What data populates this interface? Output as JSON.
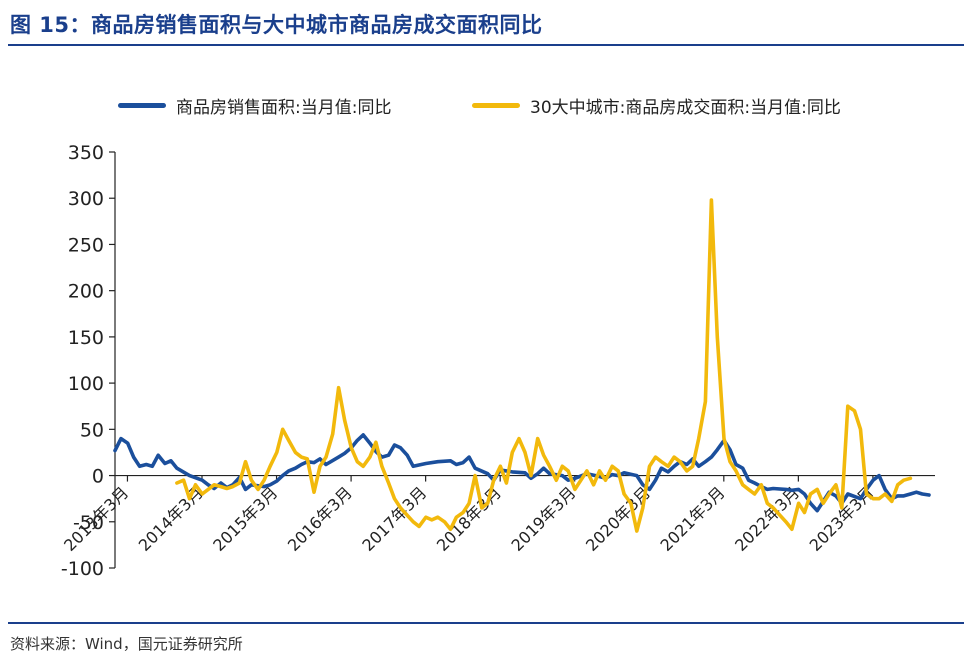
{
  "header": {
    "title": "图 15：商品房销售面积与大中城市商品房成交面积同比"
  },
  "source": {
    "text": "资料来源：Wind，国元证券研究所"
  },
  "colors": {
    "accent": "#1a3f8c"
  },
  "chart_data": {
    "type": "line",
    "title": "",
    "xlabel": "",
    "ylabel": "",
    "ylim": [
      -100,
      350
    ],
    "yticks": [
      -100,
      -50,
      0,
      50,
      100,
      150,
      200,
      250,
      300,
      350
    ],
    "xlim": [
      2013.0,
      2024.0
    ],
    "xticks": [
      {
        "label": "2013年3月",
        "value": 2013.167
      },
      {
        "label": "2014年3月",
        "value": 2014.167
      },
      {
        "label": "2015年3月",
        "value": 2015.167
      },
      {
        "label": "2016年3月",
        "value": 2016.167
      },
      {
        "label": "2017年3月",
        "value": 2017.167
      },
      {
        "label": "2018年3月",
        "value": 2018.167
      },
      {
        "label": "2019年3月",
        "value": 2019.167
      },
      {
        "label": "2020年3月",
        "value": 2020.167
      },
      {
        "label": "2021年3月",
        "value": 2021.167
      },
      {
        "label": "2022年3月",
        "value": 2022.167
      },
      {
        "label": "2023年3月",
        "value": 2023.167
      }
    ],
    "grid": false,
    "legend_position": "top",
    "series": [
      {
        "name": "商品房销售面积:当月值:同比",
        "color": "#1b4f9c",
        "points": [
          [
            2013.0,
            27
          ],
          [
            2013.08,
            40
          ],
          [
            2013.17,
            35
          ],
          [
            2013.25,
            20
          ],
          [
            2013.33,
            10
          ],
          [
            2013.42,
            12
          ],
          [
            2013.5,
            10
          ],
          [
            2013.58,
            22
          ],
          [
            2013.67,
            13
          ],
          [
            2013.75,
            16
          ],
          [
            2013.83,
            8
          ],
          [
            2014.0,
            0
          ],
          [
            2014.17,
            -5
          ],
          [
            2014.25,
            -10
          ],
          [
            2014.33,
            -14
          ],
          [
            2014.42,
            -8
          ],
          [
            2014.5,
            -13
          ],
          [
            2014.58,
            -10
          ],
          [
            2014.67,
            -2
          ],
          [
            2014.75,
            -15
          ],
          [
            2014.83,
            -10
          ],
          [
            2015.0,
            -12
          ],
          [
            2015.08,
            -10
          ],
          [
            2015.17,
            -6
          ],
          [
            2015.25,
            0
          ],
          [
            2015.33,
            5
          ],
          [
            2015.42,
            8
          ],
          [
            2015.5,
            12
          ],
          [
            2015.58,
            15
          ],
          [
            2015.67,
            14
          ],
          [
            2015.75,
            18
          ],
          [
            2015.83,
            12
          ],
          [
            2016.0,
            20
          ],
          [
            2016.08,
            24
          ],
          [
            2016.17,
            30
          ],
          [
            2016.25,
            38
          ],
          [
            2016.33,
            44
          ],
          [
            2016.42,
            35
          ],
          [
            2016.5,
            26
          ],
          [
            2016.58,
            20
          ],
          [
            2016.67,
            22
          ],
          [
            2016.75,
            33
          ],
          [
            2016.83,
            30
          ],
          [
            2016.92,
            22
          ],
          [
            2017.0,
            10
          ],
          [
            2017.17,
            13
          ],
          [
            2017.33,
            15
          ],
          [
            2017.5,
            16
          ],
          [
            2017.58,
            12
          ],
          [
            2017.67,
            14
          ],
          [
            2017.75,
            20
          ],
          [
            2017.83,
            8
          ],
          [
            2018.0,
            2
          ],
          [
            2018.08,
            -5
          ],
          [
            2018.17,
            6
          ],
          [
            2018.33,
            4
          ],
          [
            2018.5,
            3
          ],
          [
            2018.58,
            -3
          ],
          [
            2018.67,
            2
          ],
          [
            2018.75,
            8
          ],
          [
            2018.83,
            2
          ],
          [
            2019.0,
            0
          ],
          [
            2019.08,
            -5
          ],
          [
            2019.17,
            -3
          ],
          [
            2019.33,
            2
          ],
          [
            2019.5,
            -1
          ],
          [
            2019.58,
            -3
          ],
          [
            2019.67,
            1
          ],
          [
            2019.75,
            0
          ],
          [
            2019.83,
            3
          ],
          [
            2020.0,
            0
          ],
          [
            2020.08,
            -10
          ],
          [
            2020.17,
            -15
          ],
          [
            2020.25,
            -5
          ],
          [
            2020.33,
            8
          ],
          [
            2020.42,
            4
          ],
          [
            2020.5,
            10
          ],
          [
            2020.58,
            15
          ],
          [
            2020.67,
            12
          ],
          [
            2020.75,
            18
          ],
          [
            2020.83,
            10
          ],
          [
            2020.92,
            15
          ],
          [
            2021.0,
            20
          ],
          [
            2021.08,
            28
          ],
          [
            2021.17,
            38
          ],
          [
            2021.25,
            28
          ],
          [
            2021.33,
            12
          ],
          [
            2021.42,
            8
          ],
          [
            2021.5,
            -5
          ],
          [
            2021.58,
            -8
          ],
          [
            2021.67,
            -12
          ],
          [
            2021.75,
            -15
          ],
          [
            2021.83,
            -14
          ],
          [
            2022.0,
            -15
          ],
          [
            2022.08,
            -16
          ],
          [
            2022.17,
            -15
          ],
          [
            2022.25,
            -20
          ],
          [
            2022.33,
            -30
          ],
          [
            2022.42,
            -38
          ],
          [
            2022.5,
            -28
          ],
          [
            2022.58,
            -18
          ],
          [
            2022.67,
            -22
          ],
          [
            2022.75,
            -30
          ],
          [
            2022.83,
            -20
          ],
          [
            2023.0,
            -25
          ],
          [
            2023.08,
            -15
          ],
          [
            2023.17,
            -5
          ],
          [
            2023.25,
            0
          ],
          [
            2023.33,
            -15
          ],
          [
            2023.42,
            -25
          ],
          [
            2023.5,
            -22
          ],
          [
            2023.58,
            -22
          ],
          [
            2023.67,
            -20
          ],
          [
            2023.75,
            -18
          ],
          [
            2023.83,
            -20
          ],
          [
            2023.92,
            -21
          ]
        ]
      },
      {
        "name": "30大中城市:商品房成交面积:当月值:同比",
        "color": "#f2b90c",
        "points": [
          [
            2013.83,
            -8
          ],
          [
            2013.92,
            -5
          ],
          [
            2014.0,
            -25
          ],
          [
            2014.08,
            -10
          ],
          [
            2014.17,
            -20
          ],
          [
            2014.25,
            -15
          ],
          [
            2014.33,
            -10
          ],
          [
            2014.42,
            -12
          ],
          [
            2014.5,
            -14
          ],
          [
            2014.58,
            -12
          ],
          [
            2014.67,
            -8
          ],
          [
            2014.75,
            15
          ],
          [
            2014.83,
            -5
          ],
          [
            2014.92,
            -15
          ],
          [
            2015.0,
            -5
          ],
          [
            2015.08,
            10
          ],
          [
            2015.17,
            25
          ],
          [
            2015.25,
            50
          ],
          [
            2015.33,
            38
          ],
          [
            2015.42,
            25
          ],
          [
            2015.5,
            20
          ],
          [
            2015.58,
            18
          ],
          [
            2015.67,
            -18
          ],
          [
            2015.75,
            10
          ],
          [
            2015.83,
            20
          ],
          [
            2015.92,
            45
          ],
          [
            2016.0,
            95
          ],
          [
            2016.08,
            60
          ],
          [
            2016.17,
            30
          ],
          [
            2016.25,
            15
          ],
          [
            2016.33,
            10
          ],
          [
            2016.42,
            20
          ],
          [
            2016.5,
            36
          ],
          [
            2016.58,
            10
          ],
          [
            2016.67,
            -8
          ],
          [
            2016.75,
            -25
          ],
          [
            2016.83,
            -35
          ],
          [
            2017.0,
            -50
          ],
          [
            2017.08,
            -55
          ],
          [
            2017.17,
            -45
          ],
          [
            2017.25,
            -48
          ],
          [
            2017.33,
            -45
          ],
          [
            2017.42,
            -50
          ],
          [
            2017.5,
            -58
          ],
          [
            2017.58,
            -45
          ],
          [
            2017.67,
            -40
          ],
          [
            2017.75,
            -30
          ],
          [
            2017.83,
            0
          ],
          [
            2017.92,
            -35
          ],
          [
            2018.0,
            -30
          ],
          [
            2018.08,
            -5
          ],
          [
            2018.17,
            10
          ],
          [
            2018.25,
            -8
          ],
          [
            2018.33,
            25
          ],
          [
            2018.42,
            40
          ],
          [
            2018.5,
            25
          ],
          [
            2018.58,
            0
          ],
          [
            2018.67,
            40
          ],
          [
            2018.75,
            22
          ],
          [
            2018.83,
            10
          ],
          [
            2018.92,
            -5
          ],
          [
            2019.0,
            10
          ],
          [
            2019.08,
            5
          ],
          [
            2019.17,
            -15
          ],
          [
            2019.25,
            -5
          ],
          [
            2019.33,
            5
          ],
          [
            2019.42,
            -10
          ],
          [
            2019.5,
            5
          ],
          [
            2019.58,
            -5
          ],
          [
            2019.67,
            10
          ],
          [
            2019.75,
            5
          ],
          [
            2019.83,
            -20
          ],
          [
            2019.92,
            -30
          ],
          [
            2020.0,
            -60
          ],
          [
            2020.08,
            -35
          ],
          [
            2020.17,
            10
          ],
          [
            2020.25,
            20
          ],
          [
            2020.33,
            15
          ],
          [
            2020.42,
            10
          ],
          [
            2020.5,
            20
          ],
          [
            2020.58,
            15
          ],
          [
            2020.67,
            5
          ],
          [
            2020.75,
            10
          ],
          [
            2020.83,
            40
          ],
          [
            2020.92,
            80
          ],
          [
            2021.0,
            298
          ],
          [
            2021.08,
            150
          ],
          [
            2021.17,
            40
          ],
          [
            2021.25,
            15
          ],
          [
            2021.33,
            5
          ],
          [
            2021.42,
            -10
          ],
          [
            2021.5,
            -15
          ],
          [
            2021.58,
            -20
          ],
          [
            2021.67,
            -10
          ],
          [
            2021.75,
            -30
          ],
          [
            2021.83,
            -35
          ],
          [
            2022.0,
            -50
          ],
          [
            2022.08,
            -58
          ],
          [
            2022.17,
            -30
          ],
          [
            2022.25,
            -40
          ],
          [
            2022.33,
            -20
          ],
          [
            2022.42,
            -15
          ],
          [
            2022.5,
            -30
          ],
          [
            2022.58,
            -20
          ],
          [
            2022.67,
            -10
          ],
          [
            2022.75,
            -35
          ],
          [
            2022.83,
            75
          ],
          [
            2022.92,
            70
          ],
          [
            2023.0,
            50
          ],
          [
            2023.08,
            -20
          ],
          [
            2023.17,
            -25
          ],
          [
            2023.25,
            -25
          ],
          [
            2023.33,
            -20
          ],
          [
            2023.42,
            -28
          ],
          [
            2023.5,
            -10
          ],
          [
            2023.58,
            -5
          ],
          [
            2023.67,
            -3
          ]
        ]
      }
    ]
  }
}
